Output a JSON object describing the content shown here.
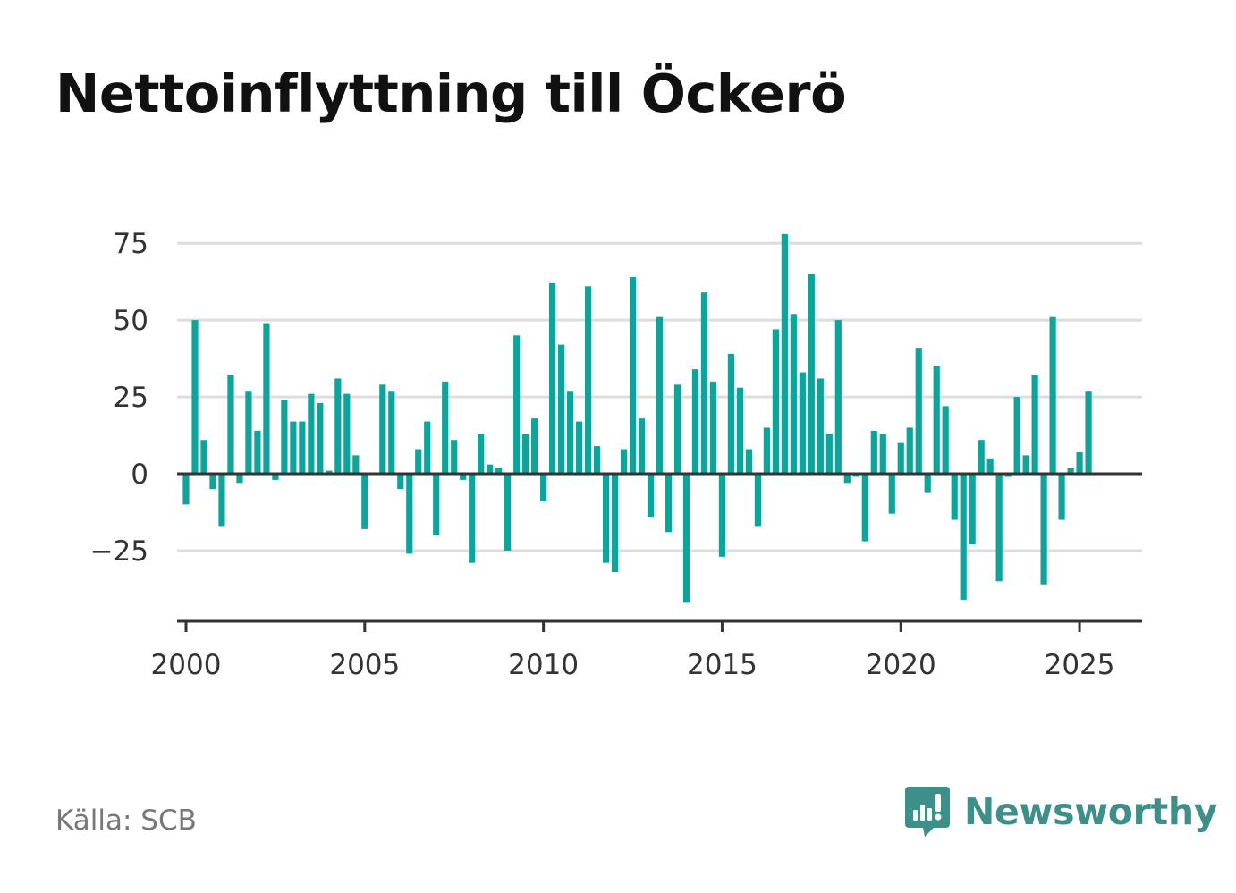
{
  "title": "Nettoinflyttning till Öckerö",
  "source": "Källa: SCB",
  "brand": {
    "name": "Newsworthy",
    "icon": "newsworthy-logo-icon",
    "color": "#3d8f8a"
  },
  "colors": {
    "bar": "#0fa39b",
    "grid": "#dddddd",
    "zero_line": "#333333",
    "axis": "#333333",
    "text": "#333333"
  },
  "chart_data": {
    "type": "bar",
    "title": "Nettoinflyttning till Öckerö",
    "xlabel": "",
    "ylabel": "",
    "frequency": "quarterly",
    "x_start": "2000Q1",
    "ylim": [
      -48,
      80
    ],
    "xlim": [
      1999.75,
      2026.75
    ],
    "yticks": [
      -25,
      0,
      25,
      50,
      75
    ],
    "ytick_labels": [
      "−25",
      "0",
      "25",
      "50",
      "75"
    ],
    "xticks": [
      2000,
      2005,
      2010,
      2015,
      2020,
      2025
    ],
    "xtick_labels": [
      "2000",
      "2005",
      "2010",
      "2015",
      "2020",
      "2025"
    ],
    "grid": true,
    "legend": "none",
    "values": [
      -10,
      50,
      11,
      -5,
      -17,
      32,
      -3,
      27,
      14,
      49,
      -2,
      24,
      17,
      17,
      26,
      23,
      1,
      31,
      26,
      6,
      -18,
      0,
      29,
      27,
      -5,
      -26,
      8,
      17,
      -20,
      30,
      11,
      -2,
      -29,
      13,
      3,
      2,
      -25,
      45,
      13,
      18,
      -9,
      62,
      42,
      27,
      17,
      61,
      9,
      -29,
      -32,
      8,
      64,
      18,
      -14,
      51,
      -19,
      29,
      -42,
      34,
      59,
      30,
      -27,
      39,
      28,
      8,
      -17,
      15,
      47,
      78,
      52,
      33,
      65,
      31,
      13,
      50,
      -3,
      -1,
      -22,
      14,
      13,
      -13,
      10,
      15,
      41,
      -6,
      35,
      22,
      -15,
      -41,
      -23,
      11,
      5,
      -35,
      -1,
      25,
      6,
      32,
      -36,
      51,
      -15,
      2,
      7,
      27
    ]
  }
}
